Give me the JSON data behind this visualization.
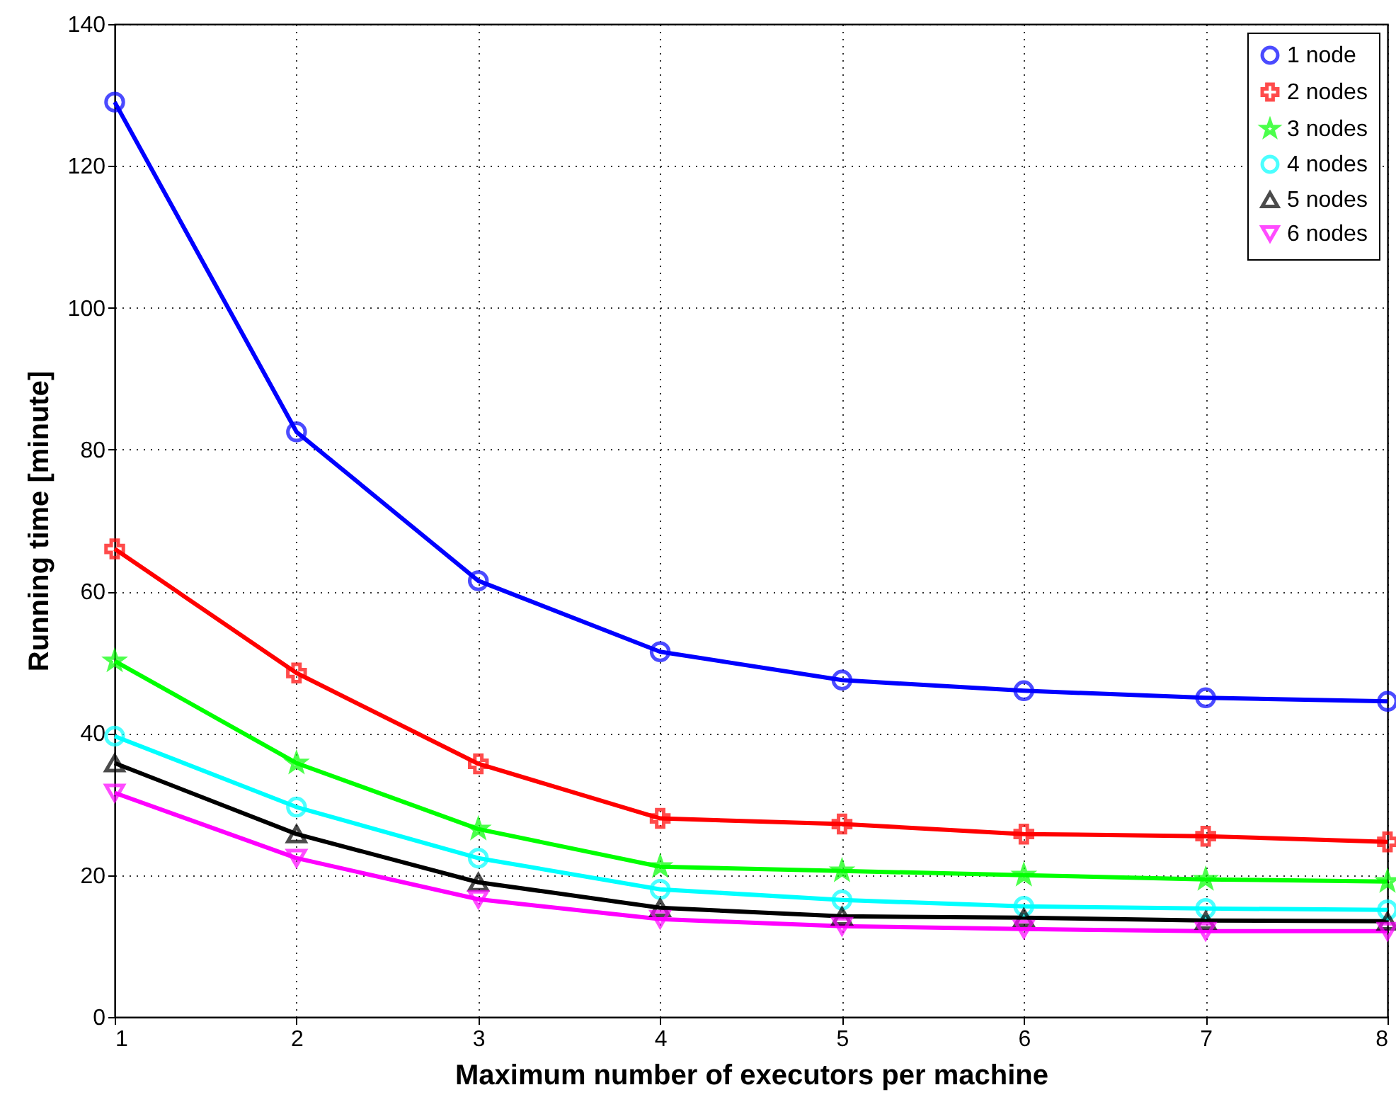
{
  "chart_data": {
    "type": "line",
    "xlabel": "Maximum number of executors per machine",
    "ylabel": "Running time [minute]",
    "x": [
      1,
      2,
      3,
      4,
      5,
      6,
      7,
      8
    ],
    "xlim": [
      1,
      8
    ],
    "xticks": [
      1,
      2,
      3,
      4,
      5,
      6,
      7,
      8
    ],
    "ylim": [
      0,
      140
    ],
    "yticks": [
      0,
      20,
      40,
      60,
      80,
      100,
      120,
      140
    ],
    "grid": true,
    "legend": "top right",
    "line_style": "solid",
    "series": [
      {
        "name": "1 node",
        "color": "#0000ff",
        "marker": "circle",
        "values": [
          129,
          82.5,
          61.5,
          51.5,
          47.5,
          46,
          45,
          44.5
        ]
      },
      {
        "name": "2 nodes",
        "color": "#ff0000",
        "marker": "cross",
        "values": [
          66,
          48.5,
          35.7,
          28,
          27.2,
          25.8,
          25.5,
          24.7
        ]
      },
      {
        "name": "3 nodes",
        "color": "#00ff00",
        "marker": "star",
        "values": [
          50.2,
          35.8,
          26.5,
          21.2,
          20.6,
          20,
          19.4,
          19.1
        ]
      },
      {
        "name": "4 nodes",
        "color": "#00ffff",
        "marker": "circle",
        "values": [
          39.6,
          29.6,
          22.4,
          18,
          16.5,
          15.6,
          15.3,
          15.1
        ]
      },
      {
        "name": "5 nodes",
        "color": "#000000",
        "marker": "triangle",
        "values": [
          35.8,
          25.8,
          19,
          15.4,
          14.2,
          14,
          13.6,
          13.5
        ]
      },
      {
        "name": "6 nodes",
        "color": "#ff00ff",
        "marker": "triangle-down",
        "values": [
          31.6,
          22.4,
          16.6,
          13.8,
          12.8,
          12.4,
          12.1,
          12.1
        ]
      }
    ]
  }
}
